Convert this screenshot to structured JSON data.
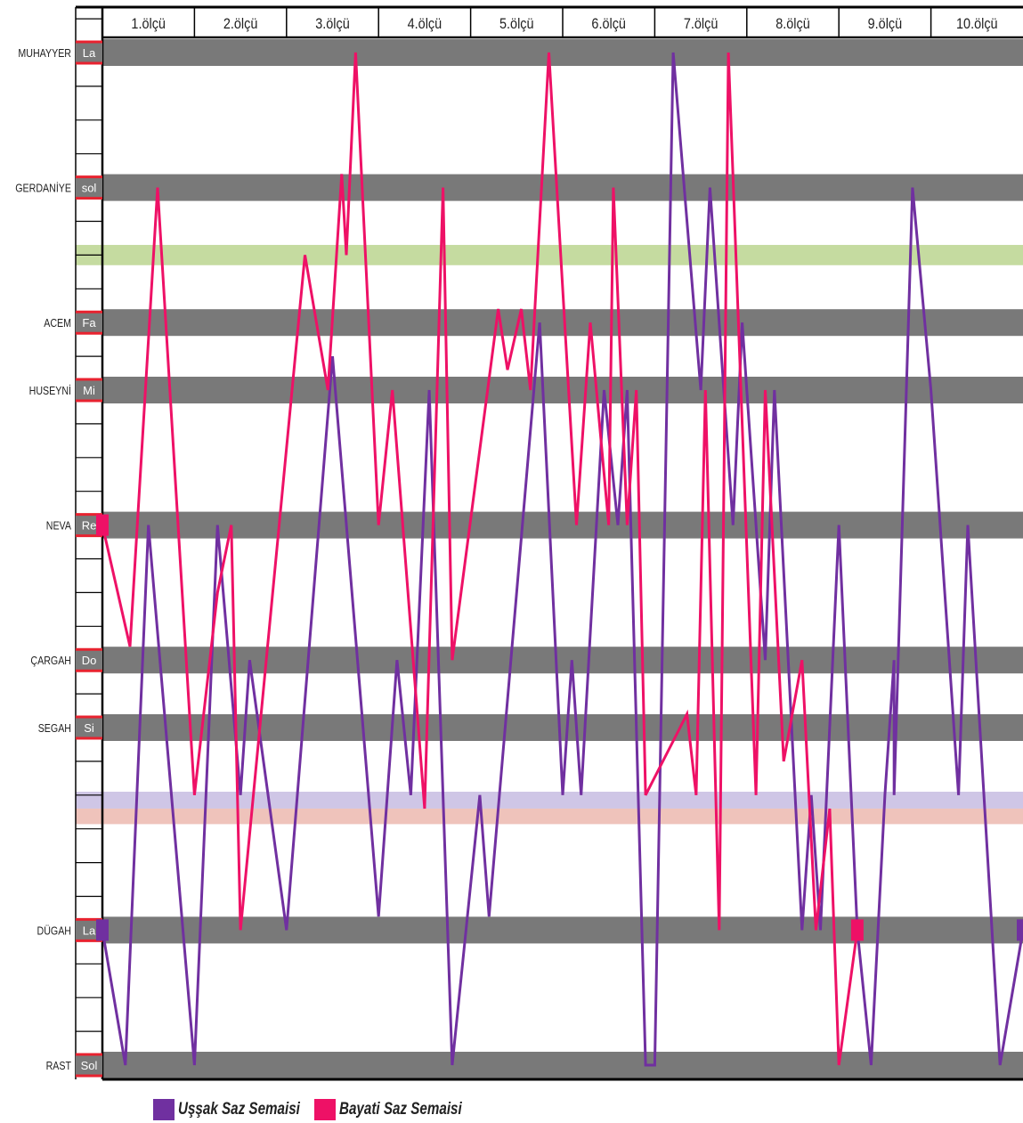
{
  "chart_data": {
    "type": "line",
    "measures": [
      "1.ölçü",
      "2.ölçü",
      "3.ölçü",
      "4.ölçü",
      "5.ölçü",
      "6.ölçü",
      "7.ölçü",
      "8.ölçü",
      "9.ölçü",
      "10.ölçü"
    ],
    "makam_levels": [
      {
        "name": "MUHAYYER",
        "note": "La",
        "step": 21
      },
      {
        "name": "GERDANİYE",
        "note": "sol",
        "step": 19
      },
      {
        "name": "ACEM",
        "note": "Fa",
        "step": 17
      },
      {
        "name": "HUSEYNİ",
        "note": "Mi",
        "step": 16
      },
      {
        "name": "NEVA",
        "note": "Re",
        "step": 14
      },
      {
        "name": "ÇARGAH",
        "note": "Do",
        "step": 12
      },
      {
        "name": "SEGAH",
        "note": "Si",
        "step": 11
      },
      {
        "name": "DÜGAH",
        "note": "La",
        "step": 8
      },
      {
        "name": "RAST",
        "note": "Sol",
        "step": 6
      }
    ],
    "highlight_bands": [
      {
        "from": 17.85,
        "to": 18.15,
        "color": "#c5dba0"
      },
      {
        "from": 9.8,
        "to": 10.05,
        "color": "#cfc6e6"
      },
      {
        "from": 9.57,
        "to": 9.8,
        "color": "#efc3bb"
      }
    ],
    "x_range": [
      0,
      10
    ],
    "y_range": [
      6,
      21
    ],
    "series": [
      {
        "name": "Uşşak Saz Semaisi",
        "color": "#7030a0",
        "points": [
          [
            0,
            8
          ],
          [
            0.25,
            6
          ],
          [
            0.5,
            14
          ],
          [
            1.0,
            6
          ],
          [
            1.25,
            14
          ],
          [
            1.5,
            10
          ],
          [
            1.6,
            12
          ],
          [
            2.0,
            8
          ],
          [
            2.5,
            16.5
          ],
          [
            3.0,
            8.2
          ],
          [
            3.2,
            12
          ],
          [
            3.35,
            10
          ],
          [
            3.55,
            16
          ],
          [
            3.8,
            6
          ],
          [
            4.1,
            10
          ],
          [
            4.2,
            8.2
          ],
          [
            4.75,
            17
          ],
          [
            5.0,
            10
          ],
          [
            5.1,
            12
          ],
          [
            5.2,
            10
          ],
          [
            5.45,
            16
          ],
          [
            5.6,
            14
          ],
          [
            5.7,
            16
          ],
          [
            5.9,
            6
          ],
          [
            6.0,
            6
          ],
          [
            6.2,
            21
          ],
          [
            6.5,
            16
          ],
          [
            6.6,
            19
          ],
          [
            6.85,
            14
          ],
          [
            6.95,
            17
          ],
          [
            7.2,
            12
          ],
          [
            7.3,
            16
          ],
          [
            7.6,
            8
          ],
          [
            7.7,
            10
          ],
          [
            7.8,
            8
          ],
          [
            8.0,
            14
          ],
          [
            8.2,
            8
          ],
          [
            8.35,
            6
          ],
          [
            8.5,
            10
          ],
          [
            8.6,
            12
          ],
          [
            8.6,
            10
          ],
          [
            8.8,
            19
          ],
          [
            9.0,
            16
          ],
          [
            9.3,
            10
          ],
          [
            9.4,
            14
          ],
          [
            9.75,
            6
          ],
          [
            10,
            8
          ]
        ]
      },
      {
        "name": "Bayati Saz Semaisi",
        "color": "#ee1166",
        "points": [
          [
            0,
            14
          ],
          [
            0.3,
            12.2
          ],
          [
            0.6,
            19
          ],
          [
            1.0,
            10
          ],
          [
            1.25,
            13
          ],
          [
            1.4,
            14
          ],
          [
            1.5,
            8
          ],
          [
            2.2,
            18
          ],
          [
            2.45,
            16
          ],
          [
            2.6,
            19.2
          ],
          [
            2.65,
            18
          ],
          [
            2.75,
            21
          ],
          [
            3.0,
            14
          ],
          [
            3.15,
            16
          ],
          [
            3.5,
            9.8
          ],
          [
            3.7,
            19
          ],
          [
            3.8,
            12
          ],
          [
            4.3,
            17.2
          ],
          [
            4.4,
            16.3
          ],
          [
            4.55,
            17.2
          ],
          [
            4.65,
            16
          ],
          [
            4.85,
            21
          ],
          [
            5.15,
            14
          ],
          [
            5.3,
            17
          ],
          [
            5.5,
            14
          ],
          [
            5.55,
            19
          ],
          [
            5.7,
            14
          ],
          [
            5.8,
            16
          ],
          [
            5.9,
            10
          ],
          [
            6.35,
            11.2
          ],
          [
            6.45,
            10
          ],
          [
            6.55,
            16
          ],
          [
            6.7,
            8
          ],
          [
            6.8,
            21
          ],
          [
            7.1,
            10
          ],
          [
            7.2,
            16
          ],
          [
            7.4,
            10.5
          ],
          [
            7.6,
            12
          ],
          [
            7.75,
            8
          ],
          [
            7.9,
            9.8
          ],
          [
            8.0,
            6
          ],
          [
            8.2,
            8
          ]
        ]
      }
    ],
    "legend": [
      "Uşşak Saz Semaisi",
      "Bayati Saz Semaisi"
    ],
    "colors": {
      "band": "#797979",
      "header_line": "#000000",
      "note_mark": "#e8222f"
    }
  }
}
